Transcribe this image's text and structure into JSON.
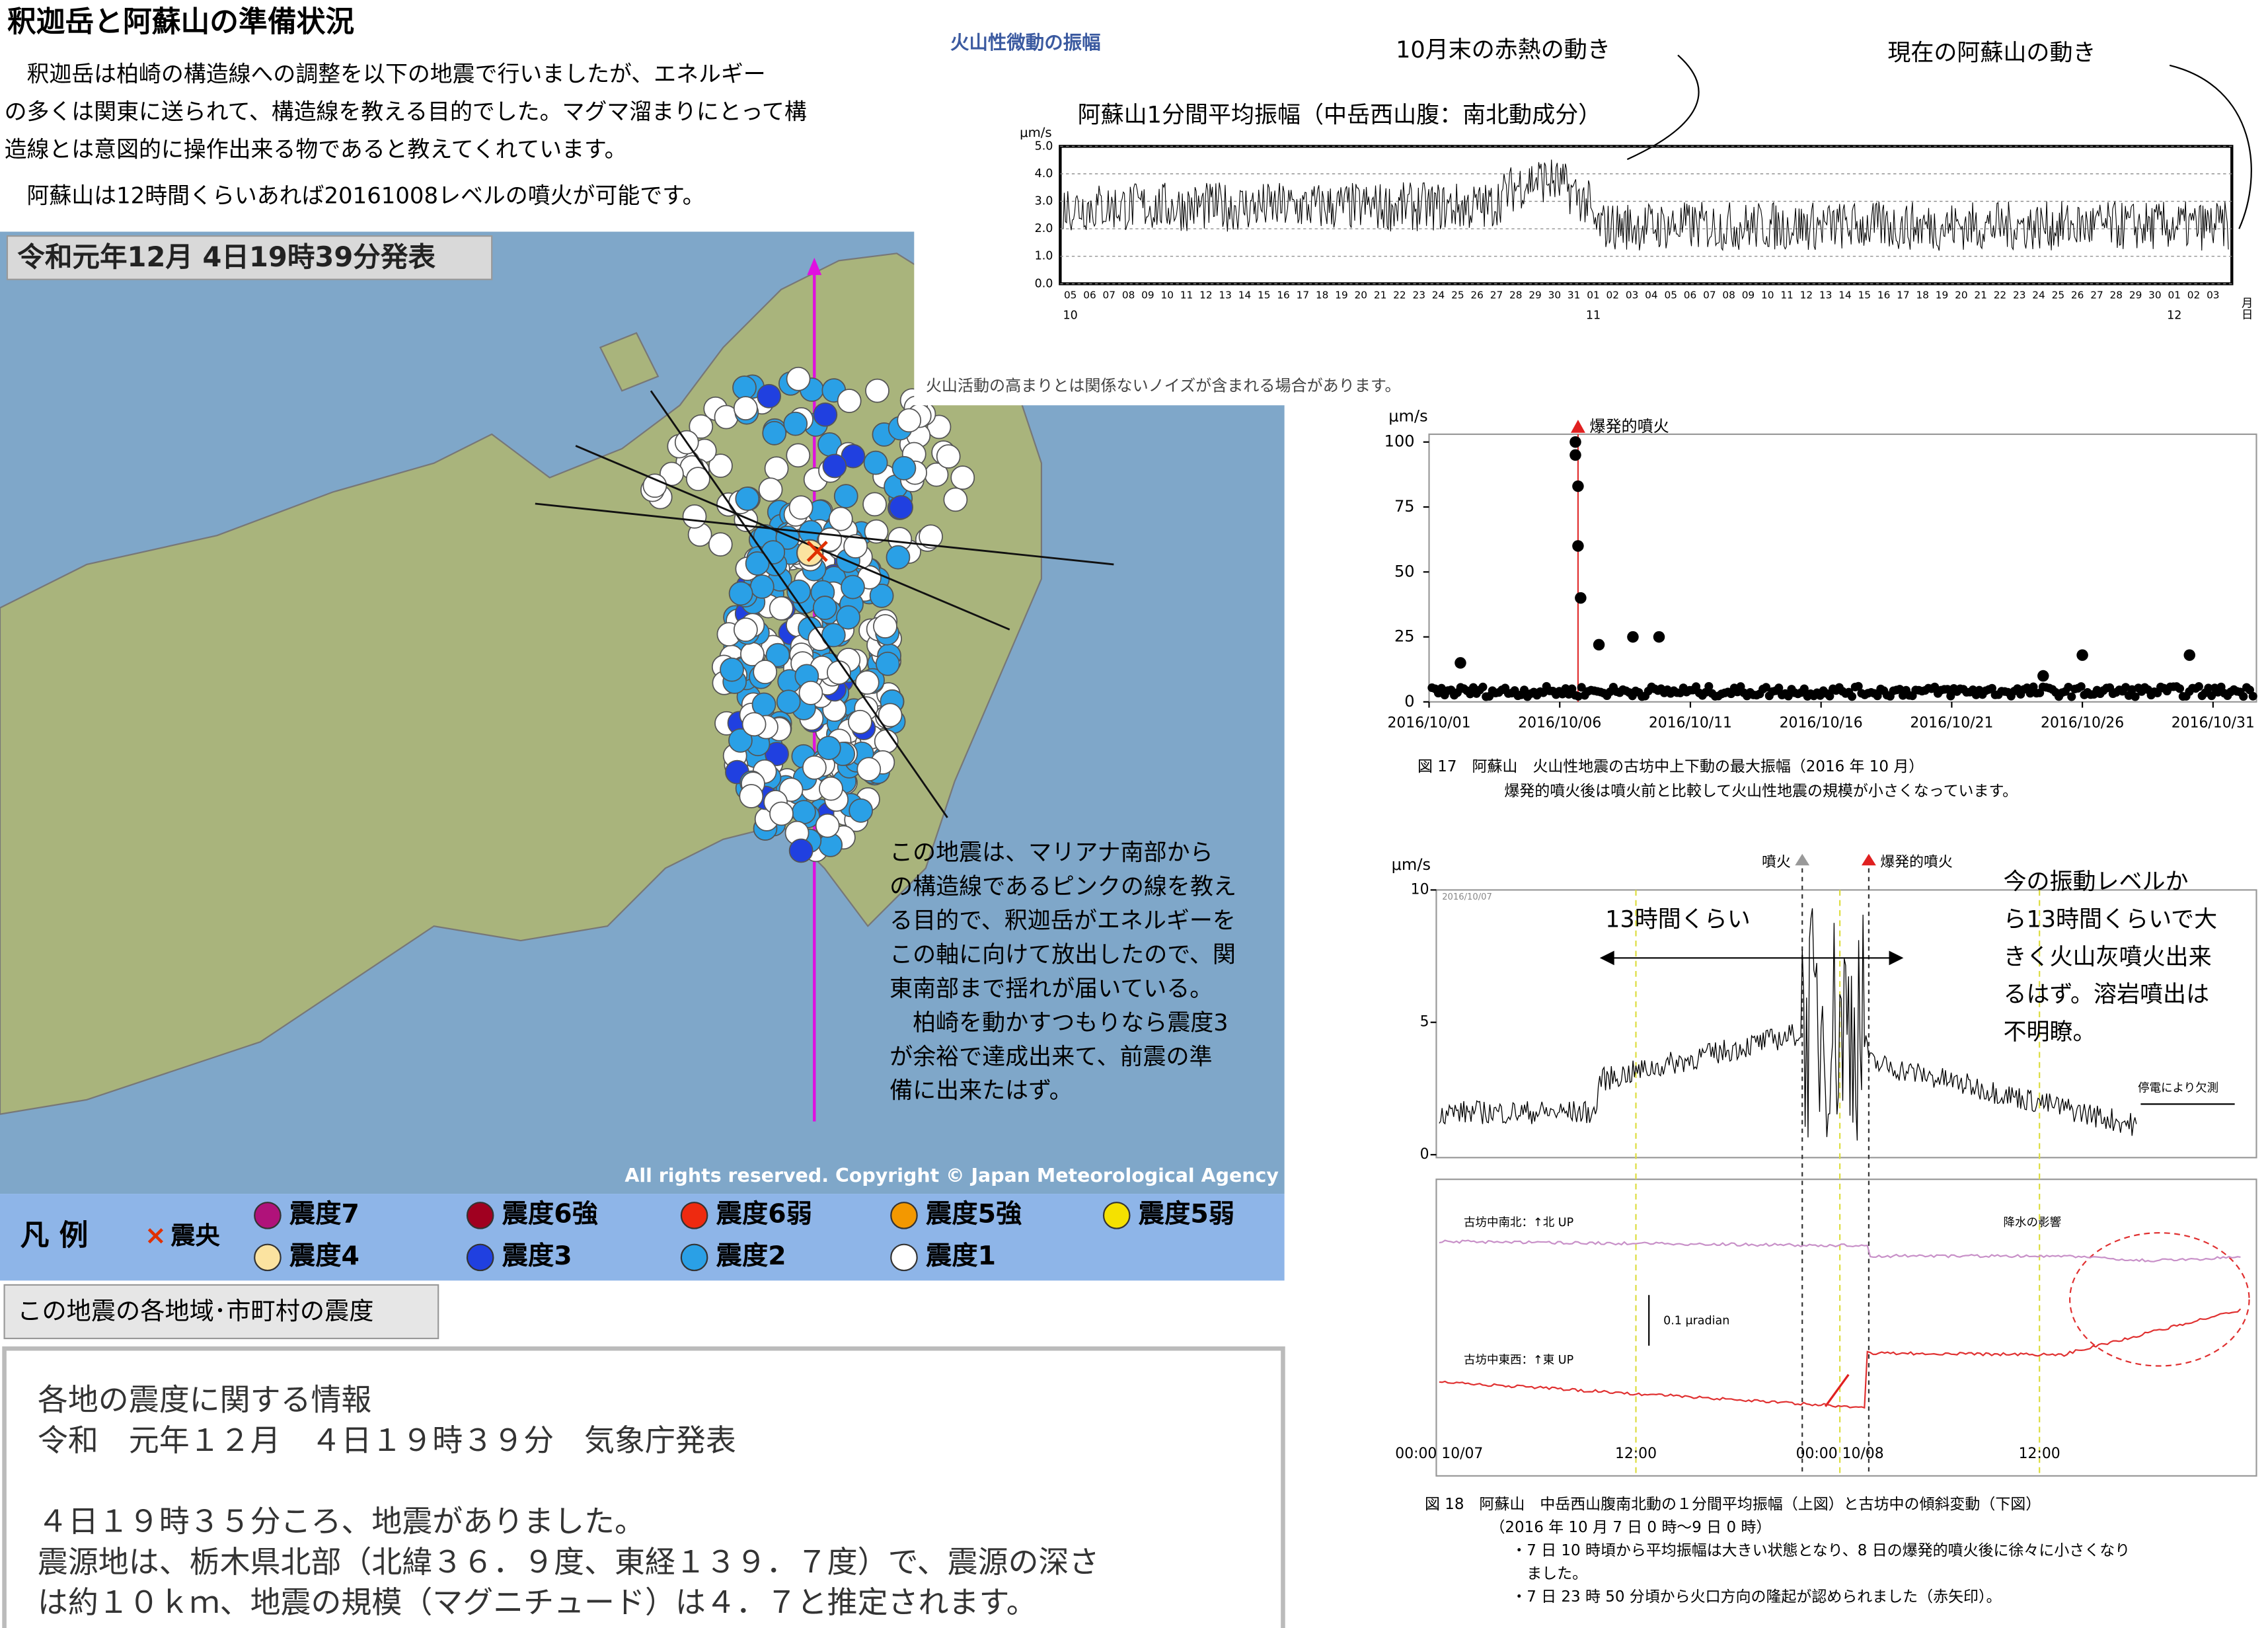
{
  "header": {
    "title": "釈迦岳と阿蘇山の準備状況",
    "lines": [
      "　釈迦岳は柏崎の構造線への調整を以下の地震で行いましたが、エネルギー",
      "の多くは関東に送られて、構造線を教える目的でした。マグマ溜まりにとって構",
      "造線とは意図的に操作出来る物であると教えてくれています。",
      "　阿蘇山は12時間くらいあれば20161008レベルの噴火が可能です。"
    ]
  },
  "map": {
    "title": "令和元年12月 4日19時39分発表",
    "copyright": "All rights reserved. Copyright © Japan Meteorological Agency",
    "legend_label": "凡 例",
    "epicenter": "震央",
    "legend": [
      {
        "name": "震度7",
        "color": "#b0127a"
      },
      {
        "name": "震度6強",
        "color": "#a00020"
      },
      {
        "name": "震度6弱",
        "color": "#ee2a10"
      },
      {
        "name": "震度5強",
        "color": "#f39800"
      },
      {
        "name": "震度5弱",
        "color": "#f5e100"
      },
      {
        "name": "震度4",
        "color": "#fbe3a0"
      },
      {
        "name": "震度3",
        "color": "#2040e0"
      },
      {
        "name": "震度2",
        "color": "#2aa0e6"
      },
      {
        "name": "震度1",
        "color": "#ffffff"
      }
    ],
    "annotation": [
      "この地震は、マリアナ南部から",
      "の構造線であるピンクの線を教え",
      "る目的で、釈迦岳がエネルギーを",
      "この軸に向けて放出したので、関",
      "東南部まで揺れが届いている。",
      "　柏崎を動かすつもりなら震度3",
      "が余裕で達成出来て、前震の準",
      "備に出来たはず。"
    ],
    "button": "この地震の各地域･市町村の震度"
  },
  "info": {
    "lines": [
      "各地の震度に関する情報",
      "令和　元年１２月　４日１９時３９分　気象庁発表",
      "４日１９時３５分ころ、地震がありました。",
      "震源地は、栃木県北部（北緯３６．９度、東経１３９．７度）で、震源の深さ",
      "は約１０ｋｍ、地震の規模（マグニチュード）は４．７と推定されます。"
    ]
  },
  "tremor": {
    "heading": "火山性微動の振幅",
    "title": "阿蘇山1分間平均振幅（中岳西山腹：南北動成分）",
    "unit": "μm/s",
    "annotations": [
      "10月末の赤熱の動き",
      "現在の阿蘇山の動き"
    ],
    "note": "火山活動の高まりとは関係ないノイズが含まれる場合があります。",
    "ylim": [
      0,
      5
    ],
    "yticks": [
      {
        "value": 0,
        "label": "0.0"
      },
      {
        "value": 1,
        "label": "1.0"
      },
      {
        "value": 2,
        "label": "2.0"
      },
      {
        "value": 3,
        "label": "3.0"
      },
      {
        "value": 4,
        "label": "4.0"
      },
      {
        "value": 5,
        "label": "5.0"
      }
    ],
    "x_labels": [
      "05",
      "06",
      "07",
      "08",
      "09",
      "10",
      "11",
      "12",
      "13",
      "14",
      "15",
      "16",
      "17",
      "18",
      "19",
      "20",
      "21",
      "22",
      "23",
      "24",
      "25",
      "26",
      "27",
      "28",
      "29",
      "30",
      "31",
      "01",
      "02",
      "03",
      "04",
      "05",
      "06",
      "07",
      "08",
      "09",
      "10",
      "11",
      "12",
      "13",
      "14",
      "15",
      "16",
      "17",
      "18",
      "19",
      "20",
      "21",
      "22",
      "23",
      "24",
      "25",
      "26",
      "27",
      "28",
      "29",
      "30",
      "01",
      "02",
      "03"
    ],
    "months": [
      "10",
      "11",
      "12"
    ],
    "month_unit": "月日"
  },
  "fig17": {
    "type": "scatter",
    "unit": "μm/s",
    "marker": "爆発的噴火",
    "ylim": [
      0,
      103
    ],
    "yticks": [
      0,
      25,
      50,
      75,
      100
    ],
    "xlim": [
      1,
      31
    ],
    "xticks": [
      {
        "value": 1,
        "label": "2016/10/01"
      },
      {
        "value": 6,
        "label": "2016/10/06"
      },
      {
        "value": 11,
        "label": "2016/10/11"
      },
      {
        "value": 16,
        "label": "2016/10/16"
      },
      {
        "value": 21,
        "label": "2016/10/21"
      },
      {
        "value": 26,
        "label": "2016/10/26"
      },
      {
        "value": 31,
        "label": "2016/10/31"
      }
    ],
    "x": [
      6.6,
      6.6,
      6.7,
      6.7,
      6.8,
      7.5,
      8.8,
      9.8,
      2.2,
      24.5,
      26.0,
      30.1
    ],
    "values": [
      100,
      95,
      83,
      60,
      40,
      22,
      25,
      25,
      15,
      10,
      18,
      18
    ],
    "color": "#000000",
    "caption": [
      "図 17　阿蘇山　火山性地震の古坊中上下動の最大振幅（2016 年 10 月）",
      "爆発的噴火後は噴火前と比較して火山性地震の規模が小さくなっています。"
    ]
  },
  "fig18": {
    "unit": "μm/s",
    "ylim": [
      0,
      10
    ],
    "yticks": [
      0,
      5,
      10
    ],
    "stamp": "2016/10/07",
    "eruption": "噴火",
    "explosive": "爆発的噴火",
    "span": "13時間くらい",
    "missing": "停電により欠測",
    "comment": [
      "今の振動レベルか",
      "ら13時間くらいで大",
      "きく火山灰噴火出来",
      "るはず。溶岩噴出は",
      "不明瞭。"
    ],
    "ns": "古坊中南北：↑北 UP",
    "ew": "古坊中東西：↑東 UP",
    "scale": "0.1 μradian",
    "rain": "降水の影響",
    "xticks": [
      "00:00 10/07",
      "12:00",
      "00:00 10/08",
      "12:00"
    ],
    "caption": [
      "図 18　阿蘇山　中岳西山腹南北動の１分間平均振幅（上図）と古坊中の傾斜変動（下図）",
      "（2016 年 10 月 7 日 0 時～9 日 0 時）",
      "・7 日 10 時頃から平均振幅は大きい状態となり、8 日の爆発的噴火後に徐々に小さくなり",
      "　ました。",
      "・7 日 23 時 50 分頃から火口方向の隆起が認められました（赤矢印）。"
    ]
  }
}
